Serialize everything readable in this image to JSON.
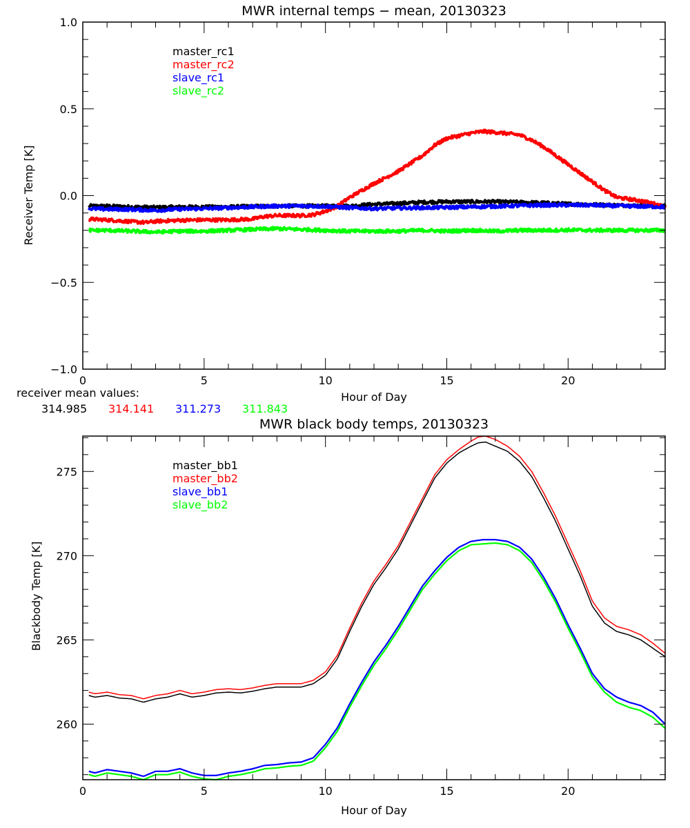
{
  "chart_data": [
    {
      "type": "line",
      "title": "MWR internal temps − mean, 20130323",
      "xlabel": "Hour of Day",
      "ylabel": "Receiver Temp [K]",
      "xlim": [
        0,
        24
      ],
      "ylim": [
        -1.0,
        1.0
      ],
      "x_ticks": [
        0,
        5,
        10,
        15,
        20
      ],
      "x_tick_labels": [
        "0",
        "5",
        "10",
        "15",
        "20"
      ],
      "x_minor_step": 1,
      "y_ticks": [
        -1.0,
        -0.5,
        0.0,
        0.5,
        1.0
      ],
      "y_tick_labels": [
        "−1.0",
        "−0.5",
        "0.0",
        "0.5",
        "1.0"
      ],
      "y_minor_step": 0.1,
      "grid": false,
      "legend_position": "top-left",
      "noisy": true,
      "series": [
        {
          "name": "master_rc1",
          "color": "#000000",
          "x": [
            0.25,
            1,
            2,
            3,
            4,
            5,
            6,
            7,
            8,
            9,
            10,
            11,
            12,
            13,
            14,
            15,
            16,
            17,
            18,
            19,
            20,
            21,
            22,
            23,
            24
          ],
          "y": [
            -0.06,
            -0.06,
            -0.065,
            -0.068,
            -0.065,
            -0.065,
            -0.065,
            -0.062,
            -0.06,
            -0.06,
            -0.06,
            -0.06,
            -0.05,
            -0.045,
            -0.038,
            -0.035,
            -0.035,
            -0.035,
            -0.038,
            -0.042,
            -0.048,
            -0.052,
            -0.055,
            -0.058,
            -0.058
          ]
        },
        {
          "name": "master_rc2",
          "color": "#ff0000",
          "x": [
            0.25,
            1,
            2,
            2.6,
            3,
            4,
            5,
            6,
            7,
            7.5,
            8,
            9,
            9.5,
            10,
            10.5,
            11,
            12,
            13,
            14,
            14.5,
            15,
            16,
            16.5,
            17,
            18,
            18.5,
            19,
            20,
            21,
            21.5,
            22,
            23,
            23.5,
            24
          ],
          "y": [
            -0.135,
            -0.14,
            -0.15,
            -0.155,
            -0.148,
            -0.142,
            -0.14,
            -0.14,
            -0.135,
            -0.12,
            -0.115,
            -0.115,
            -0.11,
            -0.09,
            -0.06,
            -0.01,
            0.07,
            0.14,
            0.23,
            0.29,
            0.33,
            0.36,
            0.37,
            0.365,
            0.35,
            0.32,
            0.28,
            0.18,
            0.08,
            0.03,
            -0.01,
            -0.03,
            -0.045,
            -0.065
          ]
        },
        {
          "name": "slave_rc1",
          "color": "#0000ff",
          "x": [
            0.25,
            1,
            2,
            3,
            4,
            5,
            6,
            7,
            8,
            9,
            10,
            11,
            12,
            13,
            14,
            15,
            16,
            17,
            18,
            19,
            20,
            21,
            22,
            23,
            24
          ],
          "y": [
            -0.075,
            -0.078,
            -0.08,
            -0.085,
            -0.078,
            -0.075,
            -0.07,
            -0.065,
            -0.06,
            -0.06,
            -0.062,
            -0.07,
            -0.075,
            -0.072,
            -0.07,
            -0.068,
            -0.065,
            -0.062,
            -0.058,
            -0.055,
            -0.055,
            -0.055,
            -0.06,
            -0.062,
            -0.065
          ]
        },
        {
          "name": "slave_rc2",
          "color": "#00ff00",
          "x": [
            0.25,
            1,
            2,
            3,
            4,
            5,
            6,
            7,
            8,
            9,
            10,
            11,
            12,
            13,
            14,
            15,
            16,
            17,
            18,
            19,
            20,
            21,
            22,
            23,
            24
          ],
          "y": [
            -0.2,
            -0.2,
            -0.205,
            -0.21,
            -0.205,
            -0.205,
            -0.2,
            -0.195,
            -0.19,
            -0.195,
            -0.2,
            -0.205,
            -0.205,
            -0.205,
            -0.2,
            -0.205,
            -0.2,
            -0.205,
            -0.2,
            -0.2,
            -0.198,
            -0.2,
            -0.2,
            -0.2,
            -0.2
          ]
        }
      ],
      "annotation": {
        "label": "receiver mean values:",
        "values": [
          {
            "text": "314.985",
            "color": "#000000"
          },
          {
            "text": "314.141",
            "color": "#ff0000"
          },
          {
            "text": "311.273",
            "color": "#0000ff"
          },
          {
            "text": "311.843",
            "color": "#00ff00"
          }
        ]
      }
    },
    {
      "type": "line",
      "title": "MWR black body temps, 20130323",
      "xlabel": "Hour of Day",
      "ylabel": "Blackbody Temp [K]",
      "xlim": [
        0,
        24
      ],
      "ylim": [
        256.7,
        277.1
      ],
      "x_ticks": [
        0,
        5,
        10,
        15,
        20
      ],
      "x_tick_labels": [
        "0",
        "5",
        "10",
        "15",
        "20"
      ],
      "x_minor_step": 1,
      "y_ticks": [
        260,
        265,
        270,
        275
      ],
      "y_tick_labels": [
        "260",
        "265",
        "270",
        "275"
      ],
      "y_minor_step": 1,
      "grid": false,
      "legend_position": "top-left",
      "noisy": false,
      "series": [
        {
          "name": "master_bb1",
          "color": "#000000",
          "x": [
            0.25,
            0.5,
            1,
            1.5,
            2,
            2.5,
            3,
            3.5,
            4,
            4.5,
            5,
            5.5,
            6,
            6.5,
            7,
            7.5,
            8,
            8.5,
            9,
            9.5,
            10,
            10.5,
            11,
            11.5,
            12,
            12.5,
            13,
            13.5,
            14,
            14.5,
            15,
            15.5,
            16,
            16.3,
            16.6,
            17,
            17.5,
            18,
            18.5,
            19,
            19.5,
            20,
            20.5,
            21,
            21.5,
            22,
            22.5,
            23,
            23.5,
            24
          ],
          "y": [
            261.7,
            261.6,
            261.7,
            261.55,
            261.5,
            261.3,
            261.5,
            261.6,
            261.8,
            261.6,
            261.7,
            261.85,
            261.9,
            261.85,
            261.95,
            262.1,
            262.2,
            262.2,
            262.2,
            262.4,
            262.9,
            263.9,
            265.5,
            267.0,
            268.3,
            269.3,
            270.4,
            271.8,
            273.2,
            274.6,
            275.5,
            276.1,
            276.5,
            276.7,
            276.75,
            276.5,
            276.2,
            275.6,
            274.7,
            273.4,
            272.0,
            270.4,
            268.8,
            267.0,
            266.0,
            265.5,
            265.3,
            265.0,
            264.5,
            264.0
          ]
        },
        {
          "name": "master_bb2",
          "color": "#ff0000",
          "x": [
            0.25,
            0.5,
            1,
            1.5,
            2,
            2.5,
            3,
            3.5,
            4,
            4.5,
            5,
            5.5,
            6,
            6.5,
            7,
            7.5,
            8,
            8.5,
            9,
            9.5,
            10,
            10.5,
            11,
            11.5,
            12,
            12.5,
            13,
            13.5,
            14,
            14.5,
            15,
            15.5,
            16,
            16.3,
            16.6,
            17,
            17.5,
            18,
            18.5,
            19,
            19.5,
            20,
            20.5,
            21,
            21.5,
            22,
            22.5,
            23,
            23.5,
            24
          ],
          "y": [
            261.9,
            261.8,
            261.9,
            261.75,
            261.7,
            261.5,
            261.7,
            261.8,
            262.0,
            261.8,
            261.9,
            262.05,
            262.1,
            262.05,
            262.15,
            262.3,
            262.4,
            262.4,
            262.4,
            262.6,
            263.1,
            264.1,
            265.7,
            267.2,
            268.5,
            269.5,
            270.6,
            272.0,
            273.4,
            274.8,
            275.7,
            276.3,
            276.8,
            277.05,
            277.1,
            276.9,
            276.5,
            275.9,
            275.0,
            273.7,
            272.3,
            270.7,
            269.1,
            267.3,
            266.3,
            265.8,
            265.6,
            265.3,
            264.8,
            264.2
          ]
        },
        {
          "name": "slave_bb1",
          "color": "#0000ff",
          "x": [
            0.25,
            0.5,
            1,
            1.5,
            2,
            2.5,
            3,
            3.5,
            4,
            4.5,
            5,
            5.5,
            6,
            6.5,
            7,
            7.5,
            8,
            8.5,
            9,
            9.5,
            10,
            10.5,
            11,
            11.5,
            12,
            12.5,
            13,
            13.5,
            14,
            14.5,
            15,
            15.5,
            16,
            16.5,
            17,
            17.5,
            18,
            18.5,
            19,
            19.5,
            20,
            20.5,
            21,
            21.5,
            22,
            22.5,
            23,
            23.5,
            24
          ],
          "y": [
            257.2,
            257.1,
            257.3,
            257.2,
            257.1,
            256.9,
            257.2,
            257.2,
            257.35,
            257.1,
            256.95,
            256.95,
            257.1,
            257.2,
            257.35,
            257.55,
            257.6,
            257.7,
            257.75,
            258.0,
            258.8,
            259.8,
            261.2,
            262.5,
            263.7,
            264.7,
            265.8,
            267.0,
            268.2,
            269.1,
            269.9,
            270.5,
            270.85,
            270.95,
            270.95,
            270.85,
            270.5,
            269.8,
            268.7,
            267.4,
            265.9,
            264.5,
            263.0,
            262.1,
            261.6,
            261.3,
            261.1,
            260.7,
            260.0
          ]
        },
        {
          "name": "slave_bb2",
          "color": "#00ff00",
          "x": [
            0.25,
            0.5,
            1,
            1.5,
            2,
            2.5,
            3,
            3.5,
            4,
            4.5,
            5,
            5.5,
            6,
            6.5,
            7,
            7.5,
            8,
            8.5,
            9,
            9.5,
            10,
            10.5,
            11,
            11.5,
            12,
            12.5,
            13,
            13.5,
            14,
            14.5,
            15,
            15.5,
            16,
            16.5,
            17,
            17.5,
            18,
            18.5,
            19,
            19.5,
            20,
            20.5,
            21,
            21.5,
            22,
            22.5,
            23,
            23.5,
            24
          ],
          "y": [
            257.0,
            256.9,
            257.1,
            257.0,
            256.9,
            256.7,
            257.0,
            257.0,
            257.15,
            256.9,
            256.75,
            256.7,
            256.9,
            257.0,
            257.15,
            257.35,
            257.4,
            257.5,
            257.55,
            257.8,
            258.6,
            259.6,
            261.0,
            262.3,
            263.5,
            264.5,
            265.6,
            266.8,
            268.0,
            268.9,
            269.7,
            270.3,
            270.65,
            270.7,
            270.75,
            270.65,
            270.3,
            269.6,
            268.5,
            267.2,
            265.7,
            264.3,
            262.8,
            261.9,
            261.3,
            261.0,
            260.8,
            260.4,
            259.75
          ]
        }
      ]
    }
  ]
}
